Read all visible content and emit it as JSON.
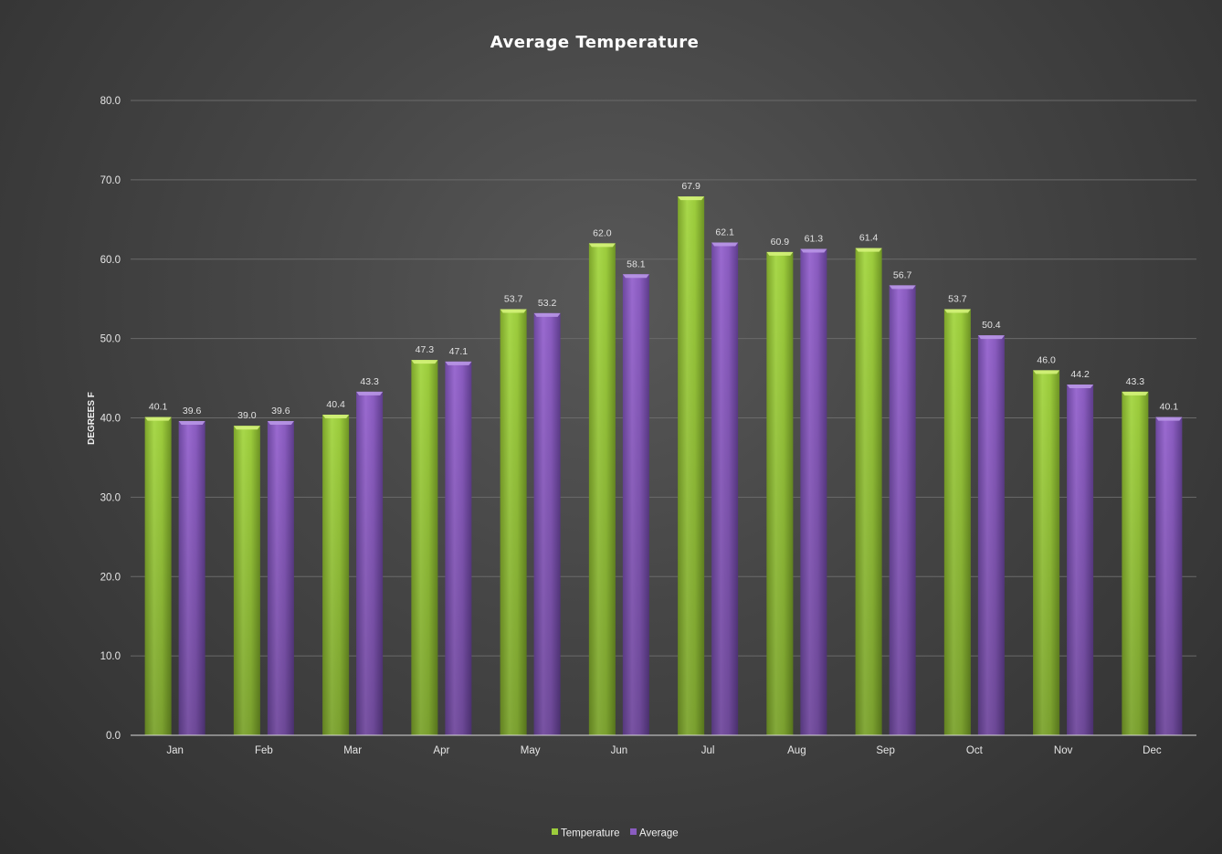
{
  "chart_data": {
    "type": "bar",
    "title": "Average Temperature",
    "xlabel": "",
    "ylabel": "DEGREES F",
    "ylim": [
      0,
      80
    ],
    "yticks": [
      "0.0",
      "10.0",
      "20.0",
      "30.0",
      "40.0",
      "50.0",
      "60.0",
      "70.0",
      "80.0"
    ],
    "categories": [
      "Jan",
      "Feb",
      "Mar",
      "Apr",
      "May",
      "Jun",
      "Jul",
      "Aug",
      "Sep",
      "Oct",
      "Nov",
      "Dec"
    ],
    "series": [
      {
        "name": "Temperature",
        "color": "#9ccc3c",
        "values": [
          40.1,
          39.0,
          40.4,
          47.3,
          53.7,
          62.0,
          67.9,
          60.9,
          61.4,
          53.7,
          46.0,
          43.3
        ]
      },
      {
        "name": "Average",
        "color": "#8a5cc0",
        "values": [
          39.6,
          39.6,
          43.3,
          47.1,
          53.2,
          58.1,
          62.1,
          61.3,
          56.7,
          50.4,
          44.2,
          40.1
        ]
      }
    ],
    "data_labels": true,
    "grid": true,
    "legend_position": "bottom"
  }
}
